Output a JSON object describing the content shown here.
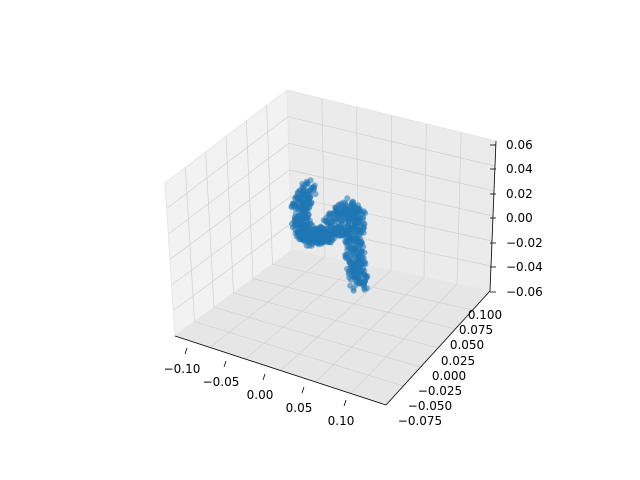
{
  "chart_data": {
    "type": "scatter3d",
    "title": "",
    "xlabel": "",
    "ylabel": "",
    "zlabel": "",
    "grid": true,
    "point_color": "#1f77b4",
    "pane_colors": [
      "#f2f2f2",
      "#ebebeb",
      "#e6e6e6"
    ],
    "x_ticks": [
      "−0.10",
      "−0.05",
      "0.00",
      "0.05",
      "0.10"
    ],
    "y_ticks": [
      "−0.075",
      "−0.050",
      "−0.025",
      "0.000",
      "0.025",
      "0.050",
      "0.075",
      "0.100"
    ],
    "z_ticks": [
      "−0.06",
      "−0.04",
      "−0.02",
      "0.00",
      "0.02",
      "0.04",
      "0.06"
    ],
    "points_hint": "dense cluster shaped like a bent tube, roughly spanning x -0.06..0.04, y -0.05..0.06, z -0.06..0.02"
  }
}
